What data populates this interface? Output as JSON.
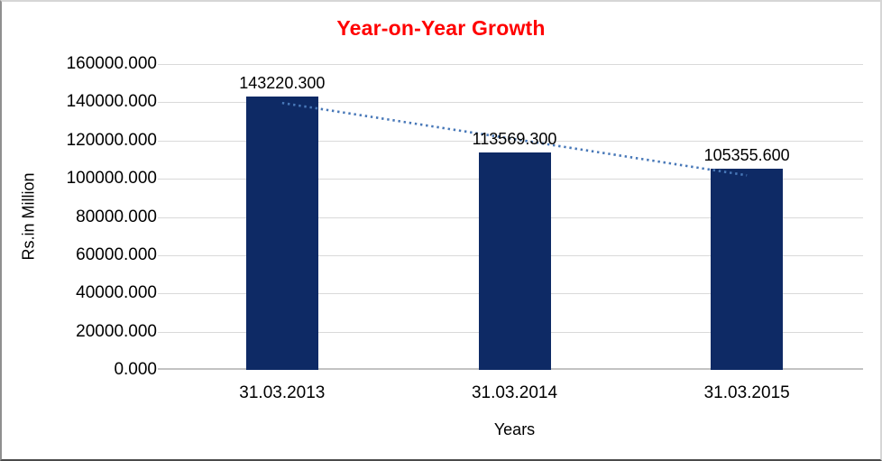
{
  "chart_data": {
    "type": "bar",
    "title": "Year-on-Year Growth",
    "title_color": "#ff0000",
    "categories": [
      "31.03.2013",
      "31.03.2014",
      "31.03.2015"
    ],
    "values": [
      143220.3,
      113569.3,
      105355.6
    ],
    "data_labels": [
      "143220.300",
      "113569.300",
      "105355.600"
    ],
    "xlabel": "Years",
    "ylabel": "Rs.in Million",
    "ylim": [
      0,
      160000
    ],
    "ytick_step": 20000,
    "ytick_labels": [
      "0.000",
      "20000.000",
      "40000.000",
      "60000.000",
      "80000.000",
      "100000.000",
      "120000.000",
      "140000.000",
      "160000.000"
    ],
    "grid": true,
    "legend": "none",
    "trendline": {
      "type": "linear",
      "style": "dotted"
    },
    "colors": {
      "bar": "#0e2a65",
      "trend": "#4878b8",
      "grid": "#d9d9d9",
      "axis_line": "#c3c3c3",
      "text": "#000000"
    }
  }
}
